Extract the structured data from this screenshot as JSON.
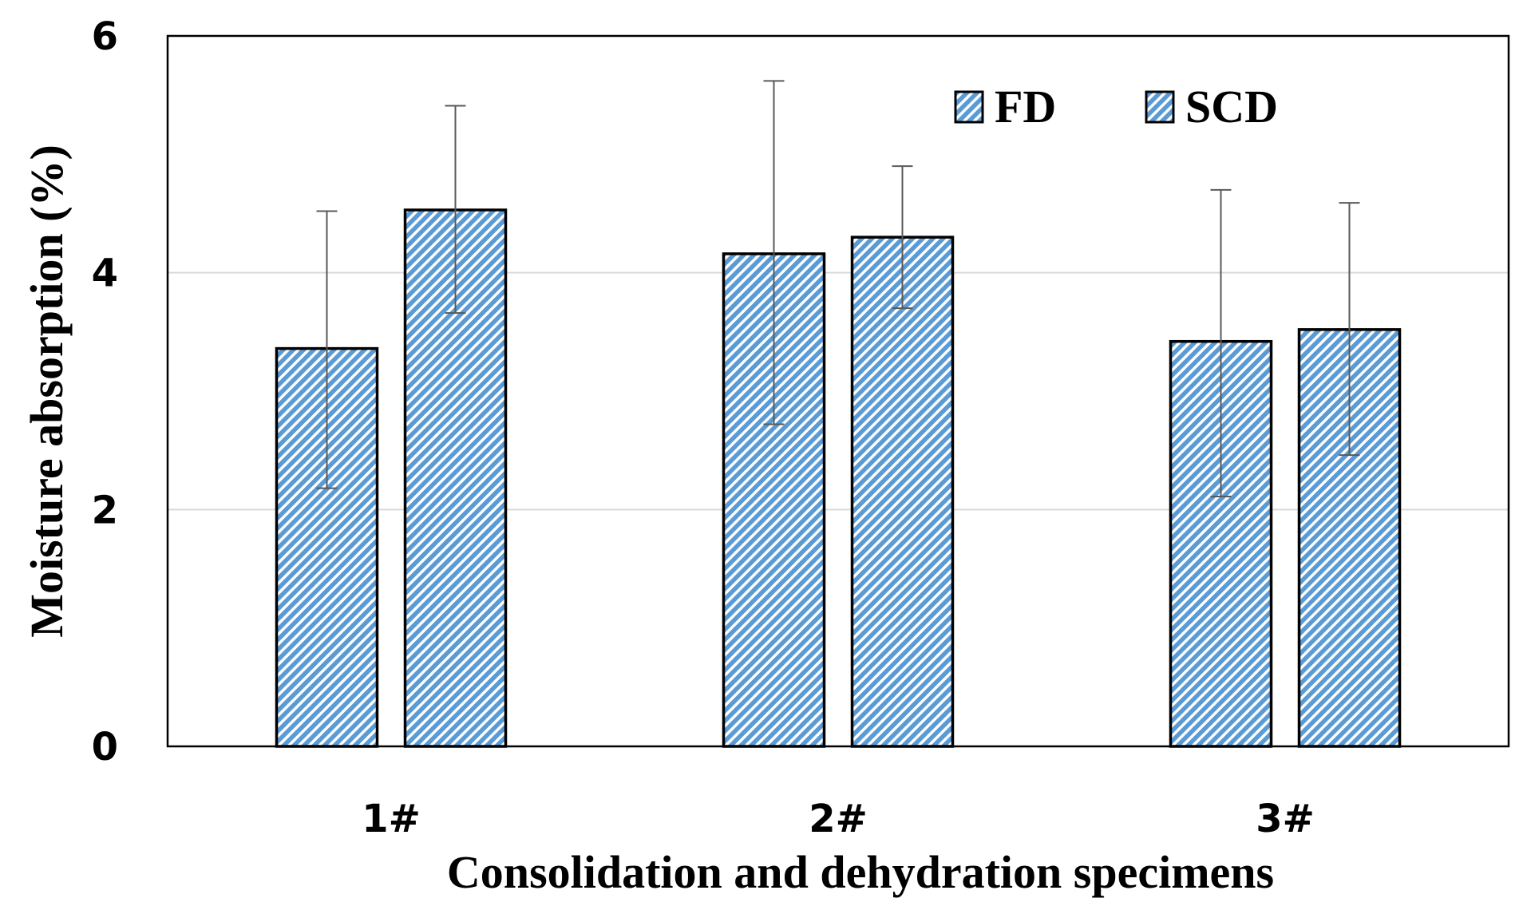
{
  "chart_data": {
    "type": "bar",
    "title": "",
    "xlabel": "Consolidation and dehydration specimens",
    "ylabel": "Moisture absorption (%)",
    "ylim": [
      0,
      6
    ],
    "yticks": [
      0,
      2,
      4,
      6
    ],
    "grid": true,
    "legend_position": "top-right",
    "categories": [
      "1#",
      "2#",
      "3#"
    ],
    "series": [
      {
        "name": "FD",
        "values": [
          3.36,
          4.16,
          3.42
        ],
        "error_low": [
          2.18,
          2.72,
          2.11
        ],
        "error_high": [
          4.52,
          5.62,
          4.7
        ],
        "color": "#5b9bd5"
      },
      {
        "name": "SCD",
        "values": [
          4.53,
          4.3,
          3.52
        ],
        "error_low": [
          3.66,
          3.7,
          2.46
        ],
        "error_high": [
          5.41,
          4.9,
          4.59
        ],
        "color": "#5b9bd5"
      }
    ]
  }
}
